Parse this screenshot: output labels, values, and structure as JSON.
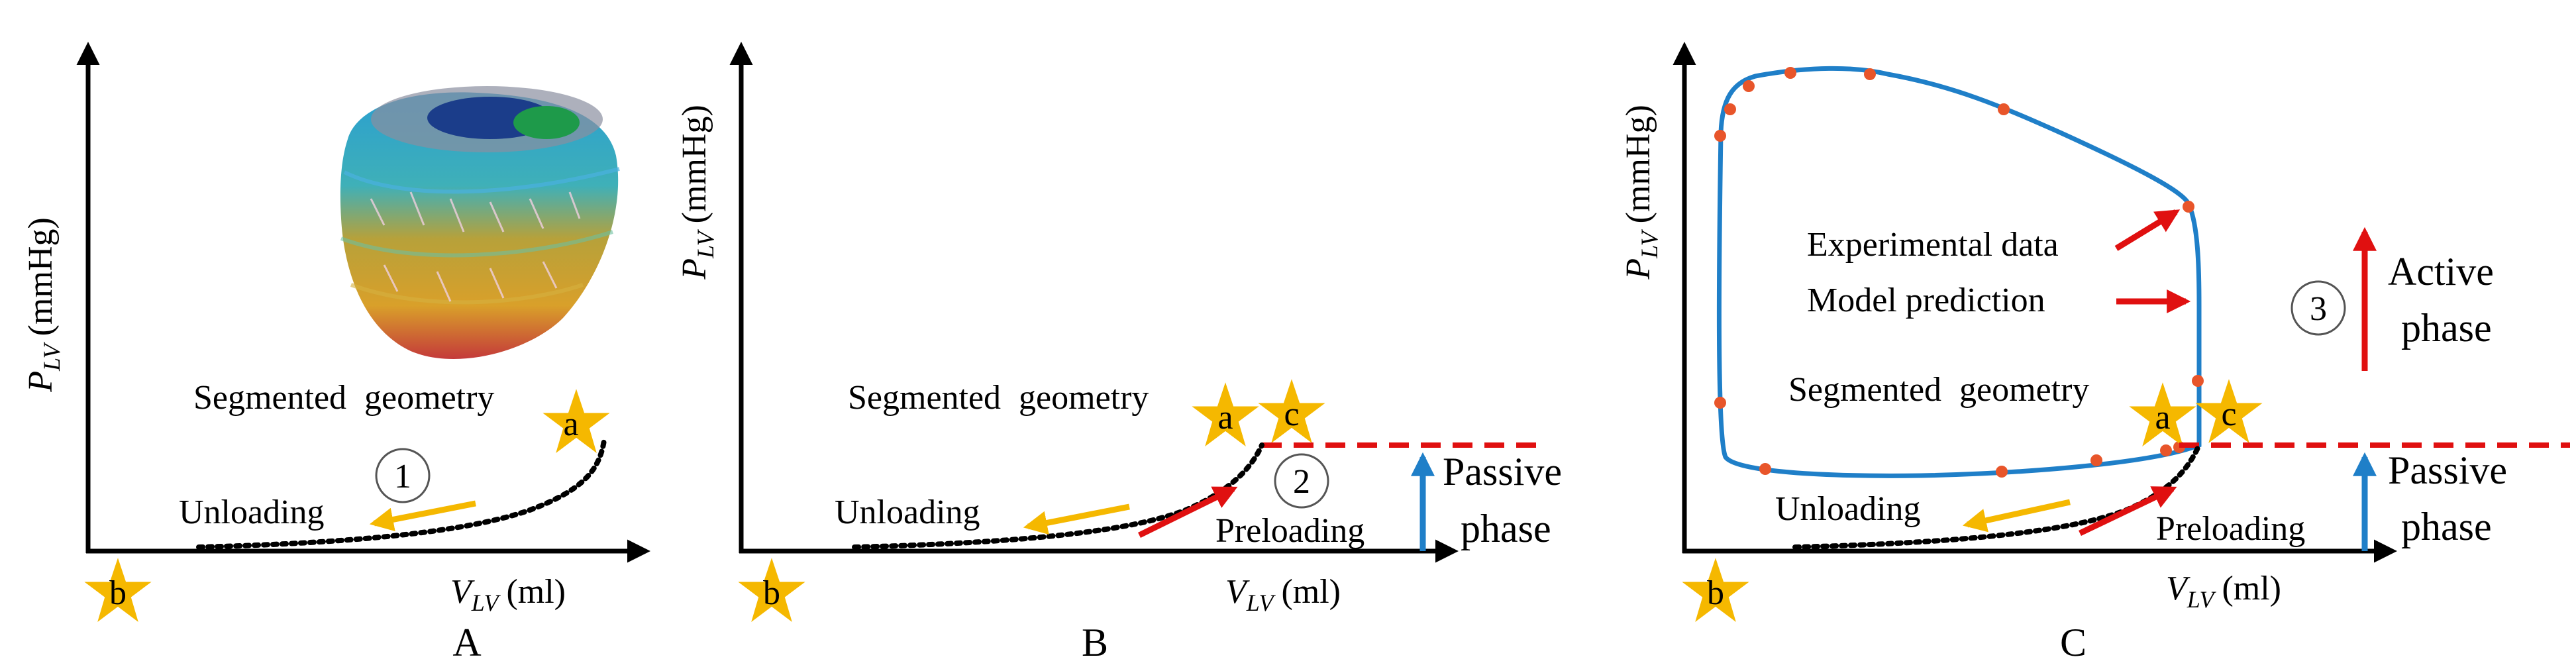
{
  "panels": {
    "A": {
      "caption": "A",
      "y_axis": {
        "main": "P",
        "sub": "LV",
        "unit": "(mmHg)"
      },
      "x_axis": {
        "main": "V",
        "sub": "LV",
        "unit": "(ml)"
      },
      "segmented_label": "Segmented geometry",
      "unloading_label": "Unloading",
      "step_number": "1",
      "star_a": "a",
      "star_b": "b"
    },
    "B": {
      "caption": "B",
      "y_axis": {
        "main": "P",
        "sub": "LV",
        "unit": "(mmHg)"
      },
      "x_axis": {
        "main": "V",
        "sub": "LV",
        "unit": "(ml)"
      },
      "segmented_label": "Segmented geometry",
      "unloading_label": "Unloading",
      "preloading_label": "Preloading",
      "step_number": "2",
      "phase_line1": "Passive",
      "phase_line2": "phase",
      "star_a": "a",
      "star_b": "b",
      "star_c": "c"
    },
    "C": {
      "caption": "C",
      "y_axis": {
        "main": "P",
        "sub": "LV",
        "unit": "(mmHg)"
      },
      "x_axis": {
        "main": "V",
        "sub": "LV",
        "unit": "(ml)"
      },
      "experimental_label": "Experimental data",
      "model_label": "Model prediction",
      "segmented_label": "Segmented geometry",
      "unloading_label": "Unloading",
      "preloading_label": "Preloading",
      "step_number": "3",
      "active_line1": "Active",
      "active_line2": "phase",
      "passive_line1": "Passive",
      "passive_line2": "phase",
      "star_a": "a",
      "star_b": "b",
      "star_c": "c"
    }
  },
  "colors": {
    "axis": "#000000",
    "star": "#f5b800",
    "model_curve": "#1f7fc8",
    "data_points": "#e8552a",
    "red_arrow": "#e01010",
    "yellow_arrow": "#f5b800",
    "blue_arrow": "#1f7fc8",
    "dashed_line": "#e01010"
  },
  "icons": {
    "heart_mesh": "heart-mesh-icon",
    "star": "star-marker-icon"
  }
}
